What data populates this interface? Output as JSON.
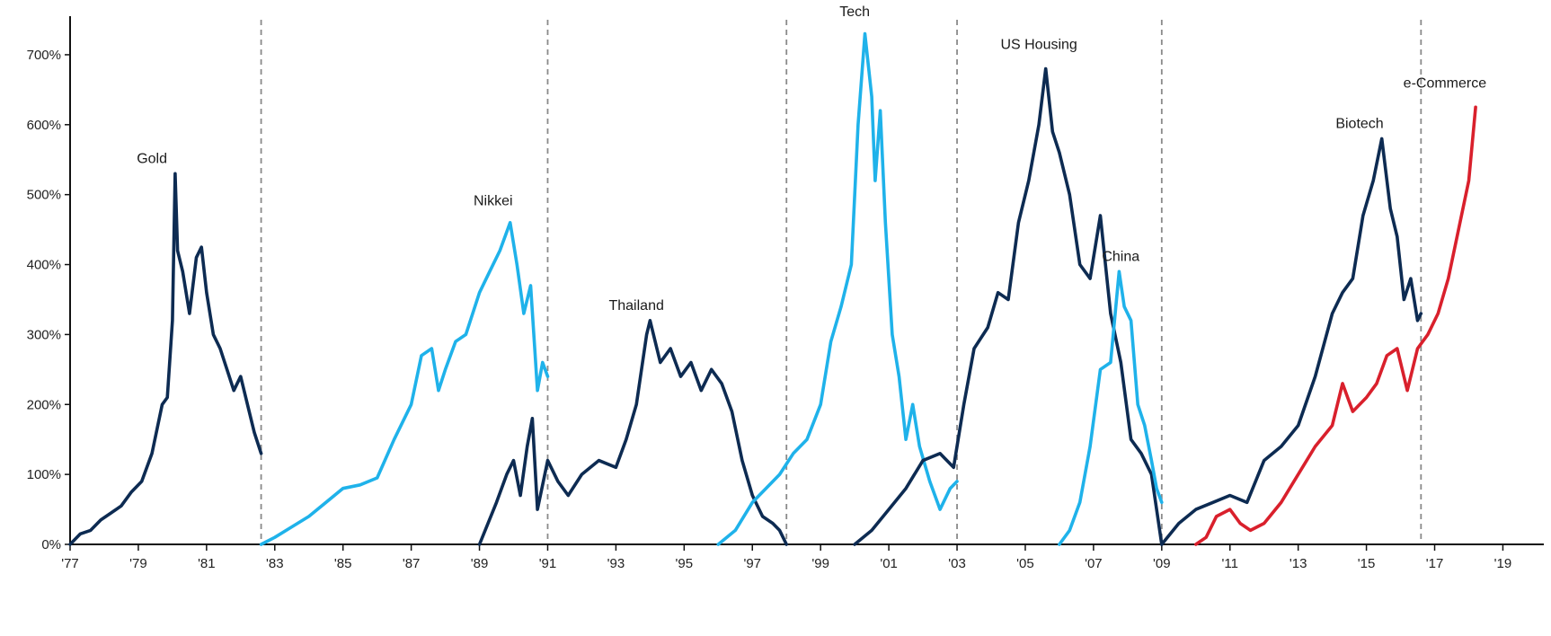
{
  "chart_data": {
    "type": "line",
    "title": "",
    "xlabel": "",
    "ylabel": "",
    "xlim": [
      1977,
      2020.2
    ],
    "ylim": [
      0,
      750
    ],
    "grid": false,
    "legend": "none",
    "y_ticks": [
      {
        "value": 0,
        "label": "0%"
      },
      {
        "value": 100,
        "label": "100%"
      },
      {
        "value": 200,
        "label": "200%"
      },
      {
        "value": 300,
        "label": "300%"
      },
      {
        "value": 400,
        "label": "400%"
      },
      {
        "value": 500,
        "label": "500%"
      },
      {
        "value": 600,
        "label": "600%"
      },
      {
        "value": 700,
        "label": "700%"
      }
    ],
    "x_ticks": [
      {
        "value": 1977,
        "label": "'77"
      },
      {
        "value": 1979,
        "label": "'79"
      },
      {
        "value": 1981,
        "label": "'81"
      },
      {
        "value": 1983,
        "label": "'83"
      },
      {
        "value": 1985,
        "label": "'85"
      },
      {
        "value": 1987,
        "label": "'87"
      },
      {
        "value": 1989,
        "label": "'89"
      },
      {
        "value": 1991,
        "label": "'91"
      },
      {
        "value": 1993,
        "label": "'93"
      },
      {
        "value": 1995,
        "label": "'95"
      },
      {
        "value": 1997,
        "label": "'97"
      },
      {
        "value": 1999,
        "label": "'99"
      },
      {
        "value": 2001,
        "label": "'01"
      },
      {
        "value": 2003,
        "label": "'03"
      },
      {
        "value": 2005,
        "label": "'05"
      },
      {
        "value": 2007,
        "label": "'07"
      },
      {
        "value": 2009,
        "label": "'09"
      },
      {
        "value": 2011,
        "label": "'11"
      },
      {
        "value": 2013,
        "label": "'13"
      },
      {
        "value": 2015,
        "label": "'15"
      },
      {
        "value": 2017,
        "label": "'17"
      },
      {
        "value": 2019,
        "label": "'19"
      }
    ],
    "dividers": [
      1982.6,
      1991.0,
      1998.0,
      2003.0,
      2009.0,
      2016.6
    ],
    "colors": {
      "navy": "#0d2b52",
      "light_blue": "#1fb2ea",
      "red": "#d9202c"
    },
    "series": [
      {
        "name": "Gold",
        "color": "navy",
        "x": [
          1977.0,
          1977.3,
          1977.6,
          1977.9,
          1978.2,
          1978.5,
          1978.8,
          1979.1,
          1979.4,
          1979.7,
          1979.85,
          1980.0,
          1980.08,
          1980.15,
          1980.3,
          1980.5,
          1980.7,
          1980.85,
          1981.0,
          1981.2,
          1981.4,
          1981.6,
          1981.8,
          1982.0,
          1982.2,
          1982.4,
          1982.6
        ],
        "y": [
          0,
          15,
          20,
          35,
          45,
          55,
          75,
          90,
          130,
          200,
          210,
          320,
          530,
          420,
          390,
          330,
          410,
          425,
          360,
          300,
          280,
          250,
          220,
          240,
          200,
          160,
          130
        ]
      },
      {
        "name": "Nikkei",
        "color": "light_blue",
        "x": [
          1982.6,
          1983.0,
          1983.5,
          1984.0,
          1984.5,
          1985.0,
          1985.5,
          1986.0,
          1986.5,
          1987.0,
          1987.3,
          1987.6,
          1987.8,
          1988.0,
          1988.3,
          1988.6,
          1989.0,
          1989.3,
          1989.6,
          1989.9,
          1990.1,
          1990.3,
          1990.5,
          1990.7,
          1990.85,
          1991.0
        ],
        "y": [
          0,
          10,
          25,
          40,
          60,
          80,
          85,
          95,
          150,
          200,
          270,
          280,
          220,
          250,
          290,
          300,
          360,
          390,
          420,
          460,
          400,
          330,
          370,
          220,
          260,
          240
        ]
      },
      {
        "name": "Thailand",
        "color": "navy",
        "x": [
          1989.0,
          1989.5,
          1989.8,
          1990.0,
          1990.2,
          1990.4,
          1990.55,
          1990.7,
          1991.0,
          1991.3,
          1991.6,
          1992.0,
          1992.5,
          1993.0,
          1993.3,
          1993.6,
          1993.9,
          1994.0,
          1994.3,
          1994.6,
          1994.9,
          1995.2,
          1995.5,
          1995.8,
          1996.1,
          1996.4,
          1996.7,
          1997.0,
          1997.3,
          1997.6,
          1997.8,
          1998.0
        ],
        "y": [
          0,
          60,
          100,
          120,
          70,
          140,
          180,
          50,
          120,
          90,
          70,
          100,
          120,
          110,
          150,
          200,
          300,
          320,
          260,
          280,
          240,
          260,
          220,
          250,
          230,
          190,
          120,
          70,
          40,
          30,
          20,
          0
        ]
      },
      {
        "name": "Tech",
        "color": "light_blue",
        "x": [
          1996.0,
          1996.5,
          1997.0,
          1997.4,
          1997.8,
          1998.2,
          1998.6,
          1999.0,
          1999.3,
          1999.6,
          1999.9,
          2000.1,
          2000.3,
          2000.5,
          2000.6,
          2000.75,
          2000.9,
          2001.1,
          2001.3,
          2001.5,
          2001.7,
          2001.9,
          2002.2,
          2002.5,
          2002.8,
          2003.0
        ],
        "y": [
          0,
          20,
          60,
          80,
          100,
          130,
          150,
          200,
          290,
          340,
          400,
          600,
          730,
          640,
          520,
          620,
          460,
          300,
          240,
          150,
          200,
          140,
          90,
          50,
          80,
          90
        ]
      },
      {
        "name": "US Housing",
        "color": "navy",
        "x": [
          2000.0,
          2000.5,
          2001.0,
          2001.5,
          2002.0,
          2002.5,
          2002.9,
          2003.2,
          2003.5,
          2003.9,
          2004.2,
          2004.5,
          2004.8,
          2005.1,
          2005.4,
          2005.6,
          2005.8,
          2006.0,
          2006.3,
          2006.6,
          2006.9,
          2007.2,
          2007.5,
          2007.8,
          2008.1,
          2008.4,
          2008.7,
          2009.0
        ],
        "y": [
          0,
          20,
          50,
          80,
          120,
          130,
          110,
          200,
          280,
          310,
          360,
          350,
          460,
          520,
          600,
          680,
          590,
          560,
          500,
          400,
          380,
          470,
          330,
          260,
          150,
          130,
          100,
          0
        ]
      },
      {
        "name": "China",
        "color": "light_blue",
        "x": [
          2006.0,
          2006.3,
          2006.6,
          2006.9,
          2007.2,
          2007.5,
          2007.75,
          2007.9,
          2008.1,
          2008.3,
          2008.5,
          2008.7,
          2008.85,
          2009.0
        ],
        "y": [
          0,
          20,
          60,
          140,
          250,
          260,
          390,
          340,
          320,
          200,
          170,
          120,
          80,
          60
        ]
      },
      {
        "name": "Biotech",
        "color": "navy",
        "x": [
          2009.0,
          2009.5,
          2010.0,
          2010.5,
          2011.0,
          2011.5,
          2012.0,
          2012.5,
          2013.0,
          2013.5,
          2014.0,
          2014.3,
          2014.6,
          2014.9,
          2015.2,
          2015.45,
          2015.7,
          2015.9,
          2016.1,
          2016.3,
          2016.5,
          2016.6
        ],
        "y": [
          0,
          30,
          50,
          60,
          70,
          60,
          120,
          140,
          170,
          240,
          330,
          360,
          380,
          470,
          520,
          580,
          480,
          440,
          350,
          380,
          320,
          330
        ]
      },
      {
        "name": "e-Commerce",
        "color": "red",
        "x": [
          2010.0,
          2010.3,
          2010.6,
          2011.0,
          2011.3,
          2011.6,
          2012.0,
          2012.5,
          2013.0,
          2013.5,
          2014.0,
          2014.3,
          2014.6,
          2015.0,
          2015.3,
          2015.6,
          2015.9,
          2016.2,
          2016.5,
          2016.8,
          2017.1,
          2017.4,
          2017.7,
          2018.0,
          2018.2
        ],
        "y": [
          0,
          10,
          40,
          50,
          30,
          20,
          30,
          60,
          100,
          140,
          170,
          230,
          190,
          210,
          230,
          270,
          280,
          220,
          280,
          300,
          330,
          380,
          450,
          520,
          625
        ]
      }
    ],
    "annotations": [
      {
        "text": "Gold",
        "x": 1979.4,
        "y": 545
      },
      {
        "text": "Nikkei",
        "x": 1989.4,
        "y": 485
      },
      {
        "text": "Thailand",
        "x": 1993.6,
        "y": 335
      },
      {
        "text": "Tech",
        "x": 2000.0,
        "y": 755
      },
      {
        "text": "US Housing",
        "x": 2005.4,
        "y": 708
      },
      {
        "text": "China",
        "x": 2007.8,
        "y": 405
      },
      {
        "text": "Biotech",
        "x": 2014.8,
        "y": 595
      },
      {
        "text": "e-Commerce",
        "x": 2017.3,
        "y": 653
      }
    ]
  }
}
